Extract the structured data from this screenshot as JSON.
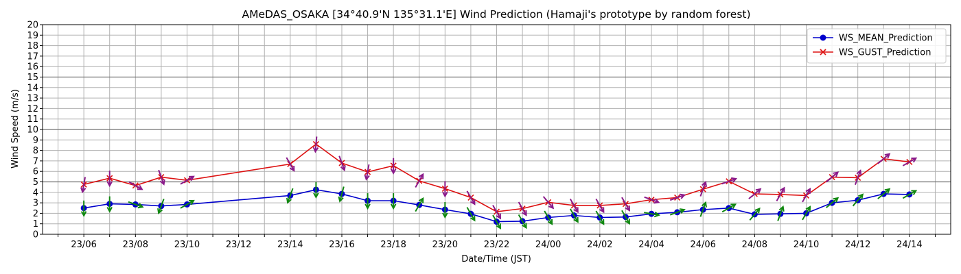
{
  "chart_data": {
    "type": "line",
    "title": "AMeDAS_OSAKA [34°40.9'N 135°31.1'E] Wind Prediction (Hamaji's prototype by random forest)",
    "xlabel": "Date/Time (JST)",
    "ylabel": "Wind Speed (m/s)",
    "ylim": [
      0,
      20
    ],
    "xlim_hours": [
      -1.6,
      33.6
    ],
    "y_ticks": [
      0,
      1,
      2,
      3,
      4,
      5,
      6,
      7,
      8,
      9,
      10,
      11,
      12,
      13,
      14,
      15,
      16,
      17,
      18,
      19,
      20
    ],
    "x_tick_labels": [
      "23/06",
      "23/08",
      "23/10",
      "23/12",
      "23/14",
      "23/16",
      "23/18",
      "23/20",
      "23/22",
      "24/00",
      "24/02",
      "24/04",
      "24/06",
      "24/08",
      "24/10",
      "24/12",
      "24/14"
    ],
    "grid": true,
    "threshold_lines": [
      5,
      10,
      15
    ],
    "legend_position": "top-right",
    "x": [
      "23/06",
      "23/07",
      "23/08",
      "23/09",
      "23/10",
      "23/14",
      "23/15",
      "23/16",
      "23/17",
      "23/18",
      "23/19",
      "23/20",
      "23/21",
      "23/22",
      "23/23",
      "24/00",
      "24/01",
      "24/02",
      "24/03",
      "24/04",
      "24/05",
      "24/06",
      "24/07",
      "24/08",
      "24/09",
      "24/10",
      "24/11",
      "24/12",
      "24/13",
      "24/14"
    ],
    "series": [
      {
        "name": "WS_MEAN_Prediction",
        "color": "#0000cc",
        "marker": "circle",
        "values": [
          2.5,
          2.9,
          2.85,
          2.7,
          2.85,
          3.7,
          4.25,
          3.85,
          3.2,
          3.2,
          2.8,
          2.35,
          1.95,
          1.2,
          1.25,
          1.6,
          1.8,
          1.6,
          1.65,
          1.95,
          2.1,
          2.35,
          2.5,
          1.9,
          1.95,
          2.0,
          3.0,
          3.25,
          3.85,
          3.8
        ],
        "arrow_color": "#118811",
        "arrow_direction_deg": [
          0,
          0,
          290,
          20,
          240,
          20,
          0,
          15,
          0,
          0,
          210,
          0,
          330,
          330,
          330,
          330,
          330,
          330,
          330,
          280,
          250,
          200,
          240,
          220,
          200,
          210,
          230,
          220,
          230,
          240
        ]
      },
      {
        "name": "WS_GUST_Prediction",
        "color": "#dd1111",
        "marker": "x",
        "values": [
          4.75,
          5.35,
          4.65,
          5.45,
          5.15,
          6.7,
          8.6,
          6.8,
          5.95,
          6.55,
          5.1,
          4.35,
          3.5,
          2.15,
          2.45,
          3.05,
          2.75,
          2.75,
          2.9,
          3.3,
          3.5,
          4.3,
          5.05,
          3.85,
          3.8,
          3.7,
          5.45,
          5.4,
          7.2,
          6.9
        ],
        "arrow_color": "#8a1a8a",
        "arrow_direction_deg": [
          10,
          0,
          300,
          340,
          240,
          330,
          5,
          340,
          10,
          0,
          210,
          0,
          330,
          330,
          330,
          320,
          330,
          330,
          330,
          290,
          250,
          200,
          250,
          230,
          210,
          210,
          230,
          200,
          230,
          240
        ]
      }
    ]
  }
}
